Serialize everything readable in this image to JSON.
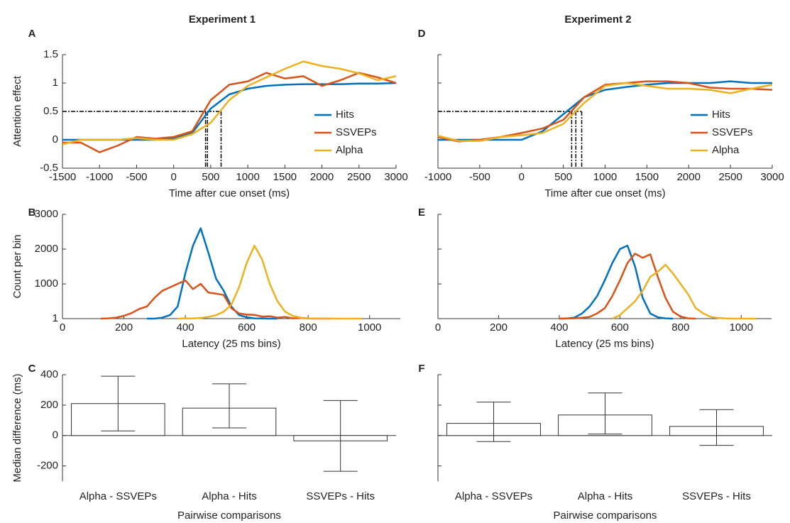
{
  "chart_data": [
    {
      "type": "line",
      "panel": "A",
      "title": "Experiment 1",
      "xlabel": "Time after cue onset (ms)",
      "ylabel": "Attention effect",
      "xlim": [
        -1500,
        3000
      ],
      "xticks": [
        -1500,
        -1000,
        -500,
        0,
        500,
        1000,
        1500,
        2000,
        2500,
        3000
      ],
      "ylim": [
        -0.5,
        1.5
      ],
      "yticks": [
        -0.5,
        0,
        0.5,
        1,
        1.5
      ],
      "legend": "lower right",
      "ytick_labels": true,
      "threshold": 0.5,
      "threshold_times": [
        430,
        455,
        640
      ],
      "x": [
        -1500,
        -1250,
        -1000,
        -750,
        -500,
        -250,
        0,
        250,
        500,
        750,
        1000,
        1250,
        1500,
        1750,
        2000,
        2250,
        2500,
        2750,
        3000
      ],
      "series": [
        {
          "name": "Hits",
          "color": "#0072BD",
          "values": [
            0,
            0,
            0,
            0,
            0,
            0,
            0.02,
            0.12,
            0.55,
            0.8,
            0.9,
            0.95,
            0.97,
            0.98,
            0.98,
            0.98,
            0.99,
            0.99,
            1.0
          ]
        },
        {
          "name": "SSVEPs",
          "color": "#D95319",
          "values": [
            -0.05,
            -0.05,
            -0.22,
            -0.1,
            0.05,
            0.02,
            0.05,
            0.15,
            0.7,
            0.97,
            1.03,
            1.18,
            1.08,
            1.12,
            0.95,
            1.05,
            1.18,
            1.1,
            1.0
          ]
        },
        {
          "name": "Alpha",
          "color": "#EDB120",
          "values": [
            -0.08,
            0,
            0,
            0,
            0.03,
            0,
            0,
            0.1,
            0.3,
            0.7,
            0.95,
            1.1,
            1.25,
            1.38,
            1.3,
            1.25,
            1.17,
            1.05,
            1.12
          ]
        }
      ]
    },
    {
      "type": "line",
      "panel": "B",
      "xlabel": "Latency (25 ms bins)",
      "ylabel": "Count per bin",
      "xlim": [
        0,
        1100
      ],
      "xticks": [
        0,
        200,
        400,
        600,
        800,
        1000
      ],
      "ylim": [
        1,
        3000
      ],
      "yticks": [
        1,
        1000,
        2000,
        3000
      ],
      "ytick_labels": true,
      "series": [
        {
          "name": "Hits",
          "color": "#0072BD",
          "x": [
            275,
            300,
            325,
            350,
            375,
            400,
            425,
            450,
            475,
            500,
            525,
            550,
            575,
            600,
            625,
            650,
            675,
            700
          ],
          "values": [
            1,
            1,
            30,
            100,
            350,
            1300,
            2100,
            2600,
            1900,
            1150,
            800,
            350,
            100,
            40,
            10,
            5,
            2,
            1
          ]
        },
        {
          "name": "SSVEPs",
          "color": "#D95319",
          "x": [
            125,
            150,
            175,
            200,
            225,
            250,
            275,
            300,
            325,
            350,
            375,
            400,
            425,
            450,
            475,
            500,
            525,
            550,
            575,
            600,
            625,
            650,
            675,
            700,
            725,
            750,
            775,
            800,
            825,
            850,
            875
          ],
          "values": [
            1,
            10,
            30,
            80,
            160,
            280,
            350,
            600,
            800,
            900,
            1000,
            1100,
            850,
            1000,
            750,
            720,
            680,
            300,
            150,
            120,
            110,
            60,
            70,
            30,
            50,
            10,
            20,
            5,
            1,
            1,
            1
          ]
        },
        {
          "name": "Alpha",
          "color": "#EDB120",
          "x": [
            375,
            400,
            425,
            450,
            475,
            500,
            525,
            550,
            575,
            600,
            625,
            650,
            675,
            700,
            725,
            750,
            775,
            800,
            825,
            850,
            875,
            900,
            925,
            950,
            975
          ],
          "values": [
            1,
            5,
            10,
            20,
            50,
            100,
            200,
            400,
            900,
            1600,
            2100,
            1700,
            1000,
            500,
            200,
            80,
            30,
            10,
            5,
            5,
            3,
            1,
            1,
            1,
            1
          ]
        }
      ]
    },
    {
      "type": "bar",
      "panel": "C",
      "xlabel": "Pairwise comparisons",
      "ylabel": "Median difference (ms)",
      "ylim": [
        -300,
        400
      ],
      "yticks": [
        -200,
        0,
        200,
        400
      ],
      "ytick_labels": true,
      "categories": [
        "Alpha - SSVEPs",
        "Alpha - Hits",
        "SSVEPs - Hits"
      ],
      "values": [
        210,
        180,
        -35
      ],
      "ci_low": [
        30,
        50,
        -235
      ],
      "ci_high": [
        390,
        340,
        230
      ]
    },
    {
      "type": "line",
      "panel": "D",
      "title": "Experiment 2",
      "xlabel": "Time after cue onset (ms)",
      "xlim": [
        -1000,
        3000
      ],
      "xticks": [
        -1000,
        -500,
        0,
        500,
        1000,
        1500,
        2000,
        2500,
        3000
      ],
      "ylim": [
        -0.5,
        1.5
      ],
      "yticks": [
        -0.5,
        0,
        0.5,
        1,
        1.5
      ],
      "legend": "lower right",
      "ytick_labels": false,
      "threshold": 0.5,
      "threshold_times": [
        600,
        650,
        720
      ],
      "x": [
        -1000,
        -750,
        -500,
        -250,
        0,
        250,
        500,
        750,
        1000,
        1250,
        1500,
        1750,
        2000,
        2250,
        2500,
        2750,
        3000
      ],
      "series": [
        {
          "name": "Hits",
          "color": "#0072BD",
          "values": [
            0,
            0,
            0,
            0,
            0,
            0.15,
            0.45,
            0.75,
            0.88,
            0.93,
            0.97,
            1.0,
            1.0,
            1.0,
            1.03,
            1.0,
            1.0
          ]
        },
        {
          "name": "SSVEPs",
          "color": "#D95319",
          "values": [
            0.05,
            -0.03,
            0,
            0.05,
            0.12,
            0.2,
            0.35,
            0.75,
            0.97,
            1.0,
            1.03,
            1.03,
            1.0,
            0.92,
            0.9,
            0.9,
            0.88
          ]
        },
        {
          "name": "Alpha",
          "color": "#EDB120",
          "values": [
            0.07,
            -0.02,
            -0.02,
            0.05,
            0.08,
            0.12,
            0.28,
            0.65,
            0.95,
            1.0,
            0.95,
            0.9,
            0.9,
            0.88,
            0.82,
            0.9,
            0.97
          ]
        }
      ]
    },
    {
      "type": "line",
      "panel": "E",
      "xlabel": "Latency (25 ms bins)",
      "xlim": [
        0,
        1100
      ],
      "xticks": [
        0,
        200,
        400,
        600,
        800,
        1000
      ],
      "ylim": [
        1,
        3000
      ],
      "yticks": [
        1,
        1000,
        2000,
        3000
      ],
      "ytick_labels": false,
      "series": [
        {
          "name": "Hits",
          "color": "#0072BD",
          "x": [
            400,
            425,
            450,
            475,
            500,
            525,
            550,
            575,
            600,
            625,
            650,
            675,
            700,
            725,
            750,
            775
          ],
          "values": [
            1,
            5,
            30,
            150,
            350,
            650,
            1100,
            1600,
            2000,
            2100,
            1500,
            600,
            150,
            40,
            10,
            1
          ]
        },
        {
          "name": "SSVEPs",
          "color": "#D95319",
          "x": [
            400,
            425,
            450,
            475,
            500,
            525,
            550,
            575,
            600,
            625,
            650,
            675,
            700,
            725,
            750,
            775,
            800,
            825,
            850
          ],
          "values": [
            1,
            5,
            10,
            25,
            50,
            150,
            300,
            650,
            1100,
            1600,
            1870,
            1750,
            1850,
            1200,
            600,
            200,
            60,
            10,
            1
          ]
        },
        {
          "name": "Alpha",
          "color": "#EDB120",
          "x": [
            575,
            600,
            625,
            650,
            675,
            700,
            725,
            750,
            775,
            800,
            825,
            850,
            875,
            900,
            925,
            950,
            975,
            1000,
            1050
          ],
          "values": [
            1,
            100,
            300,
            500,
            800,
            1200,
            1350,
            1550,
            1300,
            1000,
            700,
            300,
            150,
            50,
            20,
            5,
            1,
            1,
            1
          ]
        }
      ]
    },
    {
      "type": "bar",
      "panel": "F",
      "xlabel": "Pairwise comparisons",
      "ylim": [
        -300,
        400
      ],
      "yticks": [
        -200,
        0,
        200,
        400
      ],
      "ytick_labels": false,
      "categories": [
        "Alpha - SSVEPs",
        "Alpha - Hits",
        "SSVEPs - Hits"
      ],
      "values": [
        80,
        135,
        60
      ],
      "ci_low": [
        -40,
        10,
        -65
      ],
      "ci_high": [
        220,
        280,
        170
      ]
    }
  ]
}
